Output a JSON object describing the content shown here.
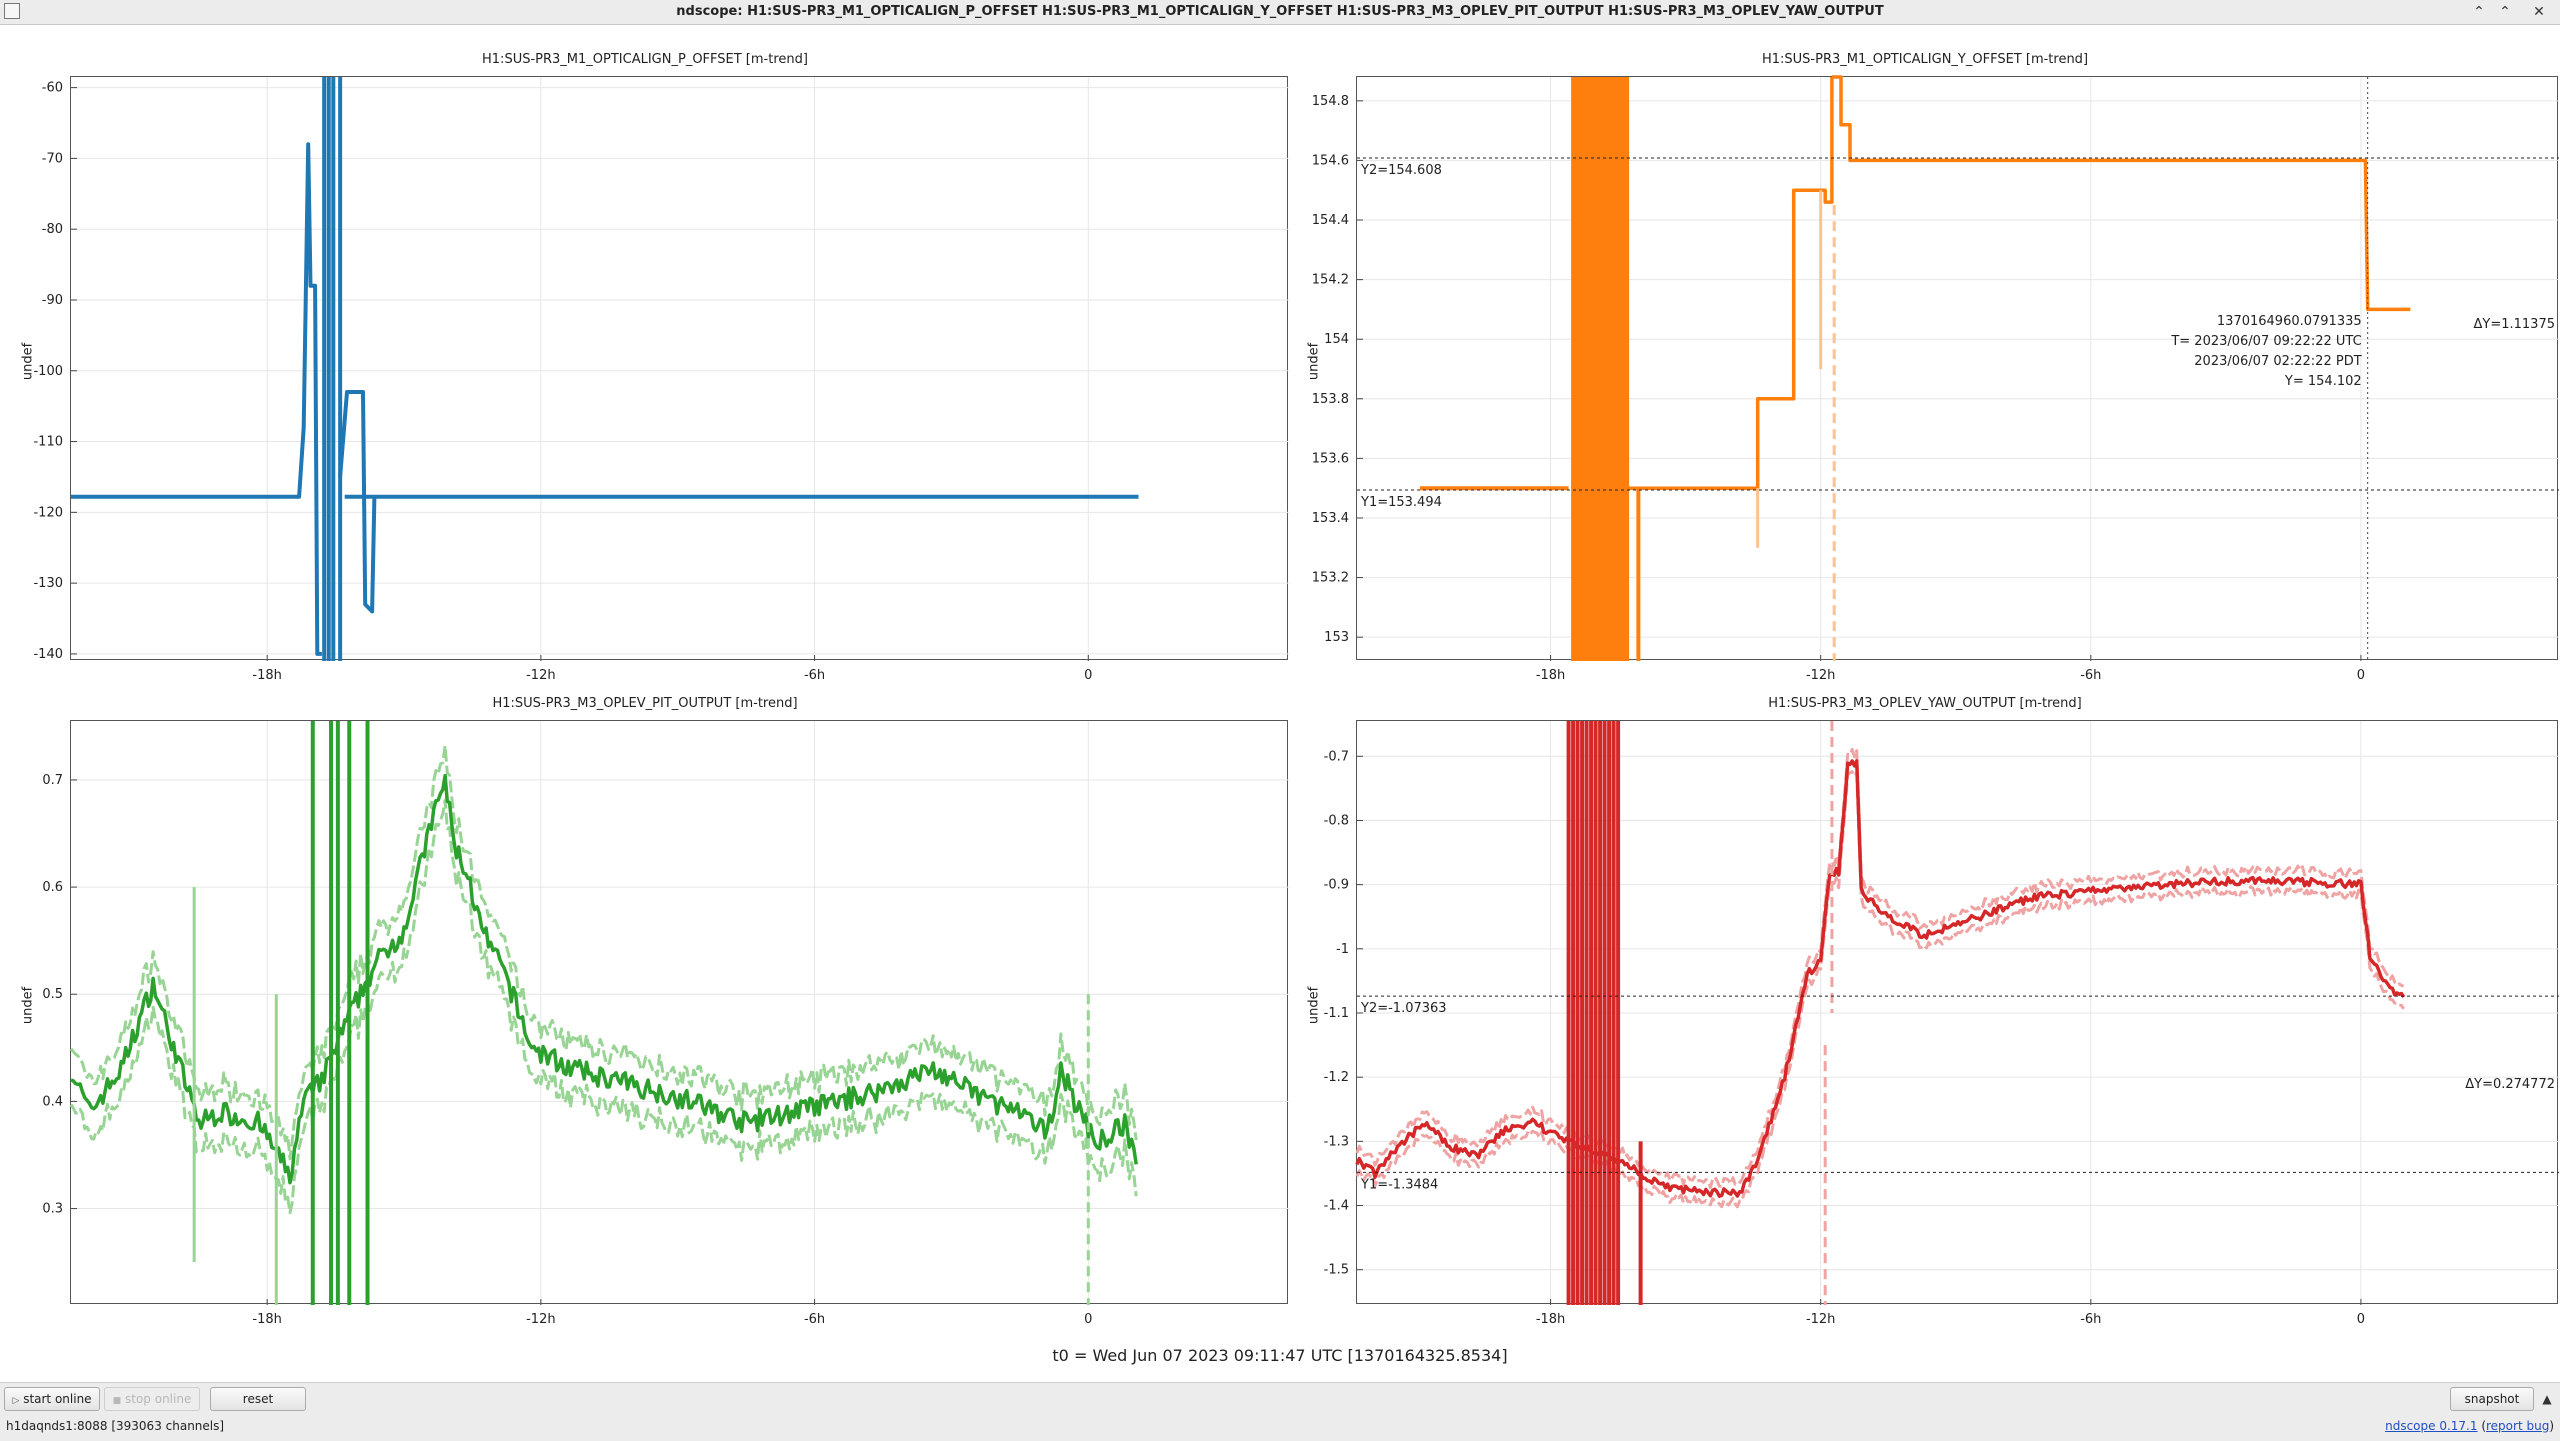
{
  "window": {
    "title": "ndscope: H1:SUS-PR3_M1_OPTICALIGN_P_OFFSET H1:SUS-PR3_M1_OPTICALIGN_Y_OFFSET H1:SUS-PR3_M3_OPLEV_PIT_OUTPUT H1:SUS-PR3_M3_OPLEV_YAW_OUTPUT",
    "minimize_glyph": "⌃",
    "maximize_glyph": "⌃",
    "close_glyph": "✕"
  },
  "x_axis": {
    "tick_labels": [
      "-18h",
      "-12h",
      "-6h",
      "0"
    ],
    "tick_values": [
      -18,
      -12,
      -6,
      0
    ],
    "range": [
      -22.3,
      4.4
    ]
  },
  "plots": [
    {
      "title": "H1:SUS-PR3_M1_OPTICALIGN_P_OFFSET [m-trend]",
      "ylabel": "undef",
      "color": "#1f77b4",
      "y_range": [
        -141,
        -58.5
      ],
      "y_ticks": [
        -60,
        -70,
        -80,
        -90,
        -100,
        -110,
        -120,
        -130,
        -140
      ],
      "y_tick_labels": [
        "-60",
        "-70",
        "-80",
        "-90",
        "-100",
        "-110",
        "-120",
        "-130",
        "-140"
      ],
      "cursors": null
    },
    {
      "title": "H1:SUS-PR3_M1_OPTICALIGN_Y_OFFSET [m-trend]",
      "ylabel": "undef",
      "color": "#ff7f0e",
      "y_range": [
        152.92,
        154.88
      ],
      "y_ticks": [
        154.8,
        154.6,
        154.4,
        154.2,
        154,
        153.8,
        153.6,
        153.4,
        153.2,
        153
      ],
      "y_tick_labels": [
        "154.8",
        "154.6",
        "154.4",
        "154.2",
        "154",
        "153.8",
        "153.6",
        "153.4",
        "153.2",
        "153"
      ],
      "cursors": {
        "y1": 153.494,
        "y2": 154.608,
        "y1_label": "Y1=153.494",
        "y2_label": "Y2=154.608",
        "dy_label": "ΔY=1.11375",
        "x": 0.15,
        "y": 154.102,
        "readout": [
          "1370164960.0791335",
          "T= 2023/06/07 09:22:22 UTC",
          "2023/06/07 02:22:22 PDT",
          "Y= 154.102"
        ]
      }
    },
    {
      "title": "H1:SUS-PR3_M3_OPLEV_PIT_OUTPUT [m-trend]",
      "ylabel": "undef",
      "color": "#2ca02c",
      "band_color": "#98d594",
      "y_range": [
        0.21,
        0.755
      ],
      "y_ticks": [
        0.7,
        0.6,
        0.5,
        0.4,
        0.3
      ],
      "y_tick_labels": [
        "0.7",
        "0.6",
        "0.5",
        "0.4",
        "0.3"
      ],
      "cursors": null
    },
    {
      "title": "H1:SUS-PR3_M3_OPLEV_YAW_OUTPUT [m-trend]",
      "ylabel": "undef",
      "color": "#d62728",
      "band_color": "#f0a3a3",
      "y_range": [
        -1.555,
        -0.645
      ],
      "y_ticks": [
        -0.7,
        -0.8,
        -0.9,
        -1,
        -1.1,
        -1.2,
        -1.3,
        -1.4,
        -1.5
      ],
      "y_tick_labels": [
        "-0.7",
        "-0.8",
        "-0.9",
        "-1",
        "-1.1",
        "-1.2",
        "-1.3",
        "-1.4",
        "-1.5"
      ],
      "cursors": {
        "y1": -1.3484,
        "y2": -1.07363,
        "y1_label": "Y1=-1.3484",
        "y2_label": "Y2=-1.07363",
        "dy_label": "ΔY=0.274772"
      }
    }
  ],
  "t0_label": "t0 = Wed Jun 07 2023 09:11:47 UTC [1370164325.8534]",
  "buttons": {
    "start_online": "start online",
    "stop_online": "stop online",
    "reset": "reset",
    "snapshot": "snapshot",
    "expand_glyph": "▲"
  },
  "status": {
    "server": "h1daqnds1:8088  [393063 channels]",
    "version_link": "ndscope 0.17.1",
    "report_prefix": " (",
    "report_link": "report bug",
    "report_suffix": ")"
  }
}
